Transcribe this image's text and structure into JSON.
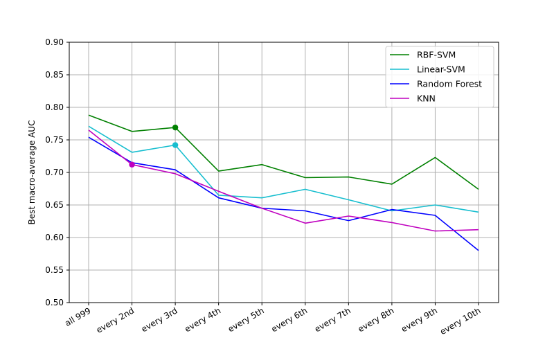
{
  "chart_data": {
    "type": "line",
    "title": "",
    "xlabel": "",
    "ylabel": "Best macro-average AUC",
    "categories": [
      "all 999",
      "every 2nd",
      "every 3rd",
      "every 4th",
      "every 5th",
      "every 6th",
      "every 7th",
      "every 8th",
      "every 9th",
      "every 10th"
    ],
    "ylim": [
      0.5,
      0.9
    ],
    "yticks": [
      "0.50",
      "0.55",
      "0.60",
      "0.65",
      "0.70",
      "0.75",
      "0.80",
      "0.85",
      "0.90"
    ],
    "grid": true,
    "legend_position": "top-right",
    "series": [
      {
        "name": "RBF-SVM",
        "color": "#008000",
        "values": [
          0.788,
          0.763,
          0.769,
          0.702,
          0.712,
          0.692,
          0.693,
          0.682,
          0.723,
          0.674
        ],
        "marker_index": 2
      },
      {
        "name": "Linear-SVM",
        "color": "#17becf",
        "values": [
          0.771,
          0.731,
          0.742,
          0.665,
          0.661,
          0.674,
          0.658,
          0.641,
          0.65,
          0.639
        ],
        "marker_index": 2
      },
      {
        "name": "Random Forest",
        "color": "#0000ff",
        "values": [
          0.754,
          0.715,
          0.704,
          0.661,
          0.645,
          0.641,
          0.626,
          0.643,
          0.634,
          0.58
        ],
        "marker_index": null
      },
      {
        "name": "KNN",
        "color": "#bf00bf",
        "values": [
          0.765,
          0.712,
          0.698,
          0.671,
          0.645,
          0.622,
          0.633,
          0.623,
          0.61,
          0.612
        ],
        "marker_index": 1
      }
    ]
  }
}
